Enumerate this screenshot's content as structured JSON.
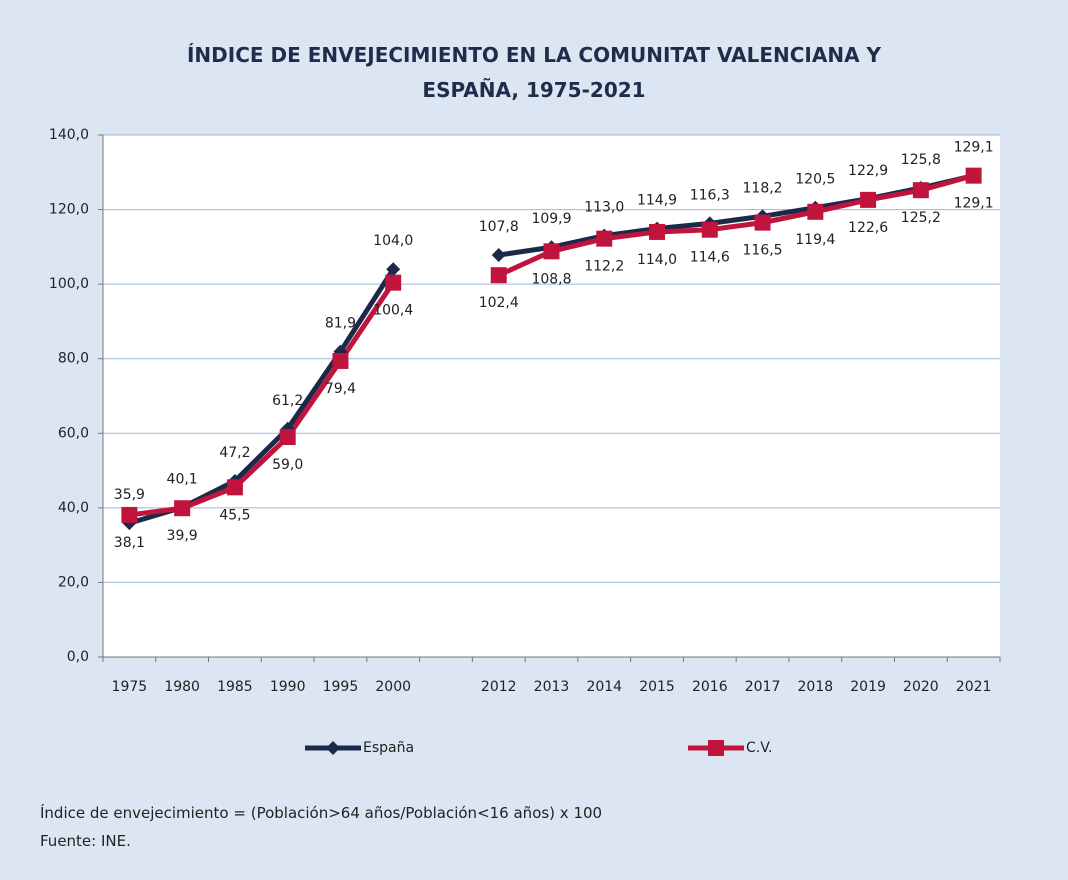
{
  "chart_data": {
    "type": "line",
    "title": "ÍNDICE DE ENVEJECIMIENTO EN LA COMUNITAT VALENCIANA Y ESPAÑA, 1975-2021",
    "categories": [
      "1975",
      "1980",
      "1985",
      "1990",
      "1995",
      "2000",
      null,
      "2012",
      "2013",
      "2014",
      "2015",
      "2016",
      "2017",
      "2018",
      "2019",
      "2020",
      "2021"
    ],
    "series": [
      {
        "name": "España",
        "color": "#1b2a4a",
        "marker": "diamond",
        "values": [
          35.9,
          40.1,
          47.2,
          61.2,
          81.9,
          104.0,
          null,
          107.8,
          109.9,
          113.0,
          114.9,
          116.3,
          118.2,
          120.5,
          122.9,
          125.8,
          129.1
        ],
        "value_labels": [
          "35,9",
          "40,1",
          "47,2",
          "61,2",
          "81,9",
          "104,0",
          null,
          "107,8",
          "109,9",
          "113,0",
          "114,9",
          "116,3",
          "118,2",
          "120,5",
          "122,9",
          "125,8",
          "129,1"
        ]
      },
      {
        "name": "C.V.",
        "color": "#c0143c",
        "marker": "square",
        "values": [
          38.1,
          39.9,
          45.5,
          59.0,
          79.4,
          100.4,
          null,
          102.4,
          108.8,
          112.2,
          114.0,
          114.6,
          116.5,
          119.4,
          122.6,
          125.2,
          129.1
        ],
        "value_labels": [
          "38,1",
          "39,9",
          "45,5",
          "59,0",
          "79,4",
          "100,4",
          null,
          "102,4",
          "108,8",
          "112,2",
          "114,0",
          "114,6",
          "116,5",
          "119,4",
          "122,6",
          "125,2",
          "129,1"
        ]
      }
    ],
    "ylim": [
      0,
      140
    ],
    "yticks": [
      {
        "value": 0,
        "label": "0,0"
      },
      {
        "value": 20,
        "label": "20,0"
      },
      {
        "value": 40,
        "label": "40,0"
      },
      {
        "value": 60,
        "label": "60,0"
      },
      {
        "value": 80,
        "label": "80,0"
      },
      {
        "value": 100,
        "label": "100,0"
      },
      {
        "value": 120,
        "label": "120,0"
      },
      {
        "value": 140,
        "label": "140,0"
      }
    ],
    "grid": true,
    "legend": "bottom",
    "notes": [
      "Índice de envejecimiento = (Población>64 años/Población<16 años) x 100",
      "Fuente: INE."
    ]
  }
}
